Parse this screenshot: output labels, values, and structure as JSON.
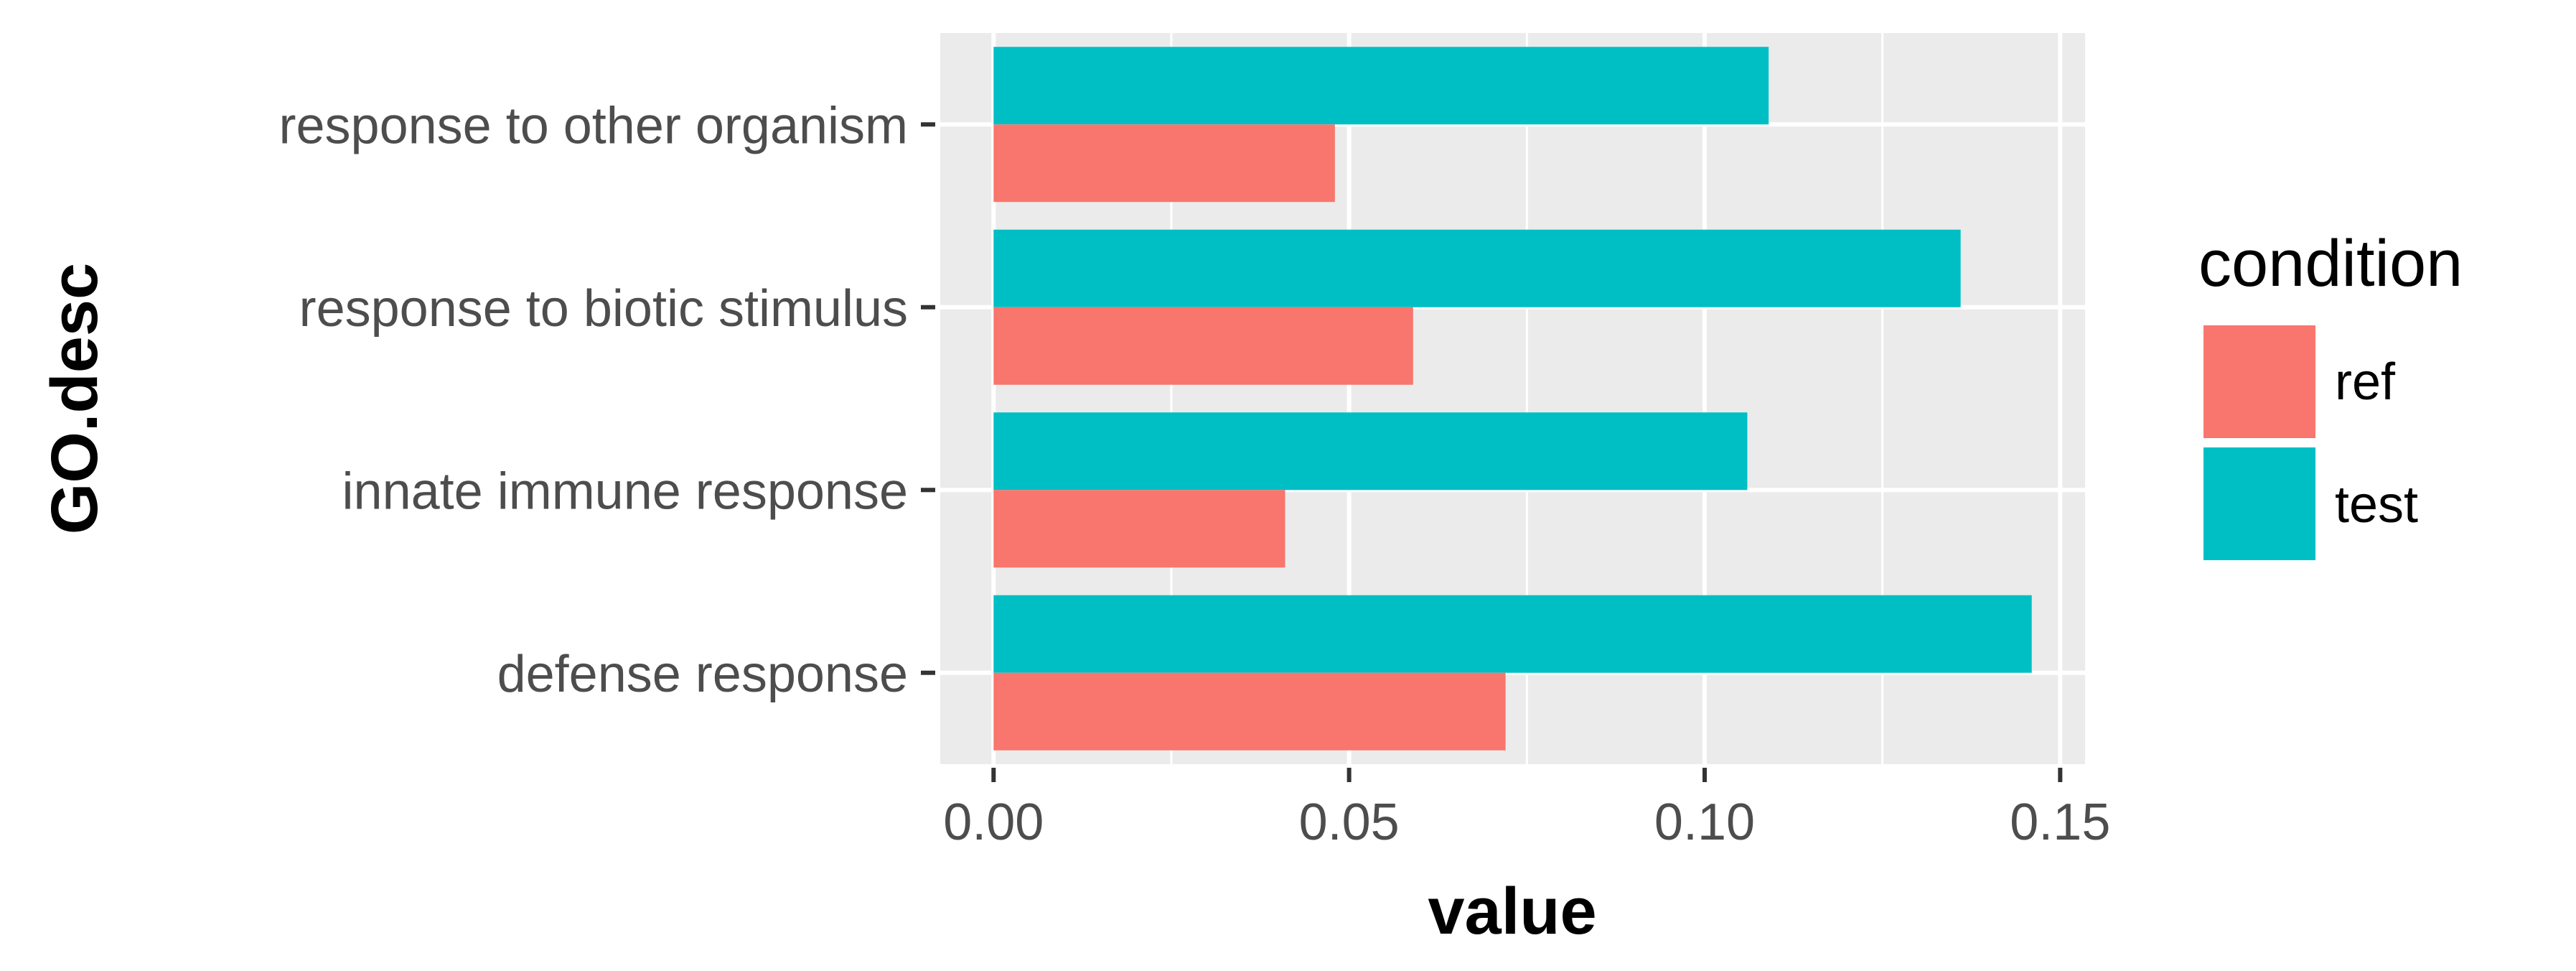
{
  "chart_data": {
    "type": "bar",
    "orientation": "horizontal",
    "categories": [
      "response to other organism",
      "response to biotic stimulus",
      "innate immune response",
      "defense response"
    ],
    "series": [
      {
        "name": "test",
        "values": [
          0.109,
          0.136,
          0.106,
          0.146
        ],
        "color": "#00BFC4"
      },
      {
        "name": "ref",
        "values": [
          0.048,
          0.059,
          0.041,
          0.072
        ],
        "color": "#F8766D"
      }
    ],
    "xlabel": "value",
    "ylabel": "GO.desc",
    "xlim": [
      -0.0075,
      0.1535
    ],
    "xticks": [
      "0.00",
      "0.05",
      "0.10",
      "0.15"
    ],
    "grid": true,
    "panel_background": "#EBEBEB",
    "legend": {
      "title": "condition",
      "position": "right",
      "items": [
        {
          "label": "ref",
          "color": "#F8766D"
        },
        {
          "label": "test",
          "color": "#00BFC4"
        }
      ]
    }
  }
}
